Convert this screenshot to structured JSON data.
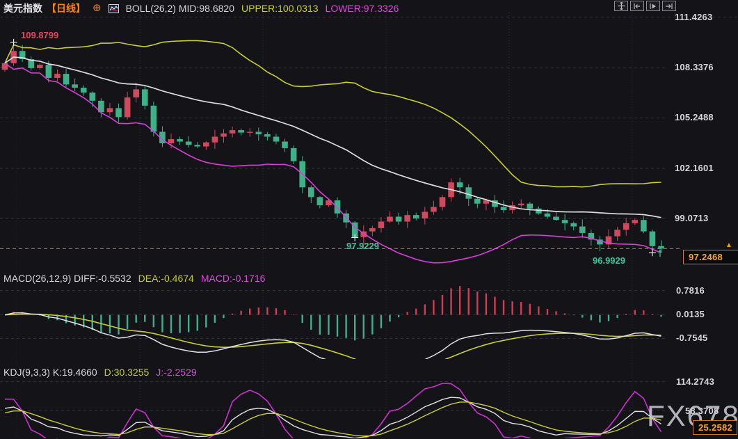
{
  "header": {
    "symbol": "美元指数",
    "period": "【日线】",
    "add_icon": "⊕",
    "boll": "BOLL(26,2)",
    "mid": "MID:98.6820",
    "upper": "UPPER:100.0313",
    "lower": "LOWER:97.3326"
  },
  "toolbar": {
    "buttons": [
      "pan",
      "scroll-to-start",
      "play-forward",
      "scroll-to-end"
    ]
  },
  "macd_legend": {
    "name": "MACD(26,12,9)",
    "diff": "DIFF:-0.5532",
    "dea": "DEA:-0.4674",
    "macd": "MACD:-0.1716"
  },
  "kdj_legend": {
    "name": "KDJ(9,3,3)",
    "k": "K:19.4660",
    "d": "D:30.3255",
    "j": "J:-2.2529"
  },
  "price_markers": {
    "high": "109.8799",
    "low1": "97.9229",
    "low2": "96.9929",
    "current": "97.2468",
    "current_arrow": "▲",
    "kdj_marker": "25.2582"
  },
  "watermark": "FX678",
  "colors": {
    "background": "#131318",
    "up_candle": "#d04a5e",
    "down_candle": "#3fb088",
    "boll_upper": "#c9cf33",
    "boll_mid": "#dcdcde",
    "boll_lower": "#d83fd8",
    "macd_pos_bar": "#d43c50",
    "macd_neg_bar": "#3fb088",
    "diff_line": "#e2e2e6",
    "dea_line": "#c9cf33",
    "k_line": "#e2e2e6",
    "d_line": "#c9cf33",
    "j_line": "#cf2fd0",
    "orange_accent": "#ff8400",
    "current_price": "#ffa21f",
    "grid": "#303138",
    "axis_text": "#d5d6da",
    "high_label": "#e4495f",
    "low_label": "#3fc39b",
    "marker_cross": "#e8e8ea"
  },
  "chart_data": [
    {
      "id": "main",
      "type": "candlestick",
      "title": "美元指数【日线】",
      "indicator": "BOLL(26,2)",
      "boll_values": {
        "mid": 98.682,
        "upper": 100.0313,
        "lower": 97.3326
      },
      "first_open": 108.2,
      "closes": [
        108.6,
        109.35,
        108.85,
        108.3,
        108.5,
        107.7,
        107.95,
        107.3,
        107.1,
        106.8,
        106.3,
        105.6,
        105.85,
        105.3,
        106.5,
        107.0,
        106.0,
        104.4,
        103.7,
        103.95,
        103.8,
        103.6,
        103.5,
        103.75,
        104.1,
        104.3,
        104.5,
        104.35,
        104.4,
        104.25,
        104.1,
        103.8,
        103.4,
        102.6,
        101.0,
        100.4,
        99.9,
        100.2,
        99.4,
        98.85,
        97.95,
        98.3,
        98.5,
        98.9,
        99.2,
        98.9,
        99.3,
        99.1,
        99.5,
        99.8,
        100.4,
        101.3,
        101.0,
        100.3,
        100.0,
        100.2,
        99.8,
        99.6,
        99.9,
        100.0,
        99.7,
        99.4,
        99.2,
        99.0,
        98.8,
        98.6,
        98.2,
        97.8,
        97.5,
        98.0,
        98.4,
        98.8,
        99.0,
        98.3,
        97.4,
        97.2468
      ],
      "y_axis_labels": [
        "111.4263",
        "108.3376",
        "105.2488",
        "102.1601",
        "99.0713"
      ],
      "ylim": [
        96.5,
        111.6
      ],
      "grid": true,
      "current_price": 97.2468,
      "annotations": [
        {
          "kind": "high",
          "index": 1,
          "value": 109.8799,
          "label": "109.8799"
        },
        {
          "kind": "low",
          "index": 40,
          "value": 97.9229,
          "label": "97.9229"
        },
        {
          "kind": "low",
          "index": 74,
          "value": 96.9929,
          "label": "96.9929"
        }
      ]
    },
    {
      "id": "macd",
      "type": "bar",
      "indicator": "MACD(26,12,9)",
      "params": [
        26,
        12,
        9
      ],
      "bar_formula": "2*(DIFF-DEA)",
      "current": {
        "diff": -0.5532,
        "dea": -0.4674,
        "macd": -0.1716
      },
      "y_axis_labels": [
        "0.7816",
        "0.0135",
        "-0.7545"
      ],
      "derived_from": "main.closes"
    },
    {
      "id": "kdj",
      "type": "line",
      "indicator": "KDJ(9,3,3)",
      "params": [
        9,
        3,
        3
      ],
      "current": {
        "k": 19.466,
        "d": 30.3255,
        "j": -2.2529
      },
      "y_axis_labels": [
        "114.2743",
        "58.3708"
      ],
      "bottom_marker": 25.2582,
      "derived_from": "main.closes"
    }
  ]
}
